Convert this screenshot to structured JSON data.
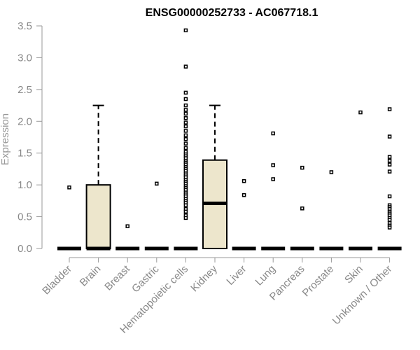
{
  "chart_data": {
    "type": "boxplot",
    "title": "ENSG00000252733 - AC067718.1",
    "xlabel": "",
    "ylabel": "Expression",
    "ylim": [
      0,
      3.5
    ],
    "yticks": [
      "0.0",
      "0.5",
      "1.0",
      "1.5",
      "2.0",
      "2.5",
      "3.0",
      "3.5"
    ],
    "box_fill": "#ede6cc",
    "categories": [
      "Bladder",
      "Brain",
      "Breast",
      "Gastric",
      "Hematopoietic cells",
      "Kidney",
      "Liver",
      "Lung",
      "Pancreas",
      "Prostate",
      "Skin",
      "Unknown / Other"
    ],
    "boxes": [
      {
        "min": 0,
        "q1": 0,
        "median": 0,
        "q3": 0,
        "max": 0,
        "outliers": [
          0.96
        ]
      },
      {
        "min": 0,
        "q1": 0,
        "median": 0,
        "q3": 1.0,
        "max": 2.25,
        "outliers": []
      },
      {
        "min": 0,
        "q1": 0,
        "median": 0,
        "q3": 0,
        "max": 0,
        "outliers": [
          0.35
        ]
      },
      {
        "min": 0,
        "q1": 0,
        "median": 0,
        "q3": 0,
        "max": 0,
        "outliers": [
          1.02
        ]
      },
      {
        "min": 0,
        "q1": 0,
        "median": 0,
        "q3": 0,
        "max": 0,
        "outliers": [
          3.43,
          2.86,
          2.45,
          2.35,
          2.25,
          2.18,
          2.12,
          2.05,
          1.98,
          1.92,
          1.85,
          1.78,
          1.72,
          1.65,
          1.58,
          1.52,
          1.48,
          1.45,
          1.42,
          1.38,
          1.35,
          1.32,
          1.28,
          1.25,
          1.22,
          1.18,
          1.15,
          1.12,
          1.08,
          1.05,
          1.02,
          0.98,
          0.95,
          0.92,
          0.88,
          0.85,
          0.82,
          0.78,
          0.75,
          0.72,
          0.68,
          0.62,
          0.58,
          0.52,
          0.48
        ]
      },
      {
        "min": 0,
        "q1": 0,
        "median": 0.71,
        "q3": 1.39,
        "max": 2.25,
        "outliers": []
      },
      {
        "min": 0,
        "q1": 0,
        "median": 0,
        "q3": 0,
        "max": 0,
        "outliers": [
          1.06,
          0.84
        ]
      },
      {
        "min": 0,
        "q1": 0,
        "median": 0,
        "q3": 0,
        "max": 0,
        "outliers": [
          1.81,
          1.31,
          1.09
        ]
      },
      {
        "min": 0,
        "q1": 0,
        "median": 0,
        "q3": 0,
        "max": 0,
        "outliers": [
          1.27,
          0.63
        ]
      },
      {
        "min": 0,
        "q1": 0,
        "median": 0,
        "q3": 0,
        "max": 0,
        "outliers": [
          1.2
        ]
      },
      {
        "min": 0,
        "q1": 0,
        "median": 0,
        "q3": 0,
        "max": 0,
        "outliers": [
          2.14
        ]
      },
      {
        "min": 0,
        "q1": 0,
        "median": 0,
        "q3": 0,
        "max": 0,
        "outliers": [
          2.19,
          1.76,
          1.44,
          1.38,
          1.32,
          1.21,
          0.82,
          0.68,
          0.65,
          0.62,
          0.58,
          0.55,
          0.52,
          0.48,
          0.45,
          0.4,
          0.36,
          0.33
        ]
      }
    ]
  }
}
